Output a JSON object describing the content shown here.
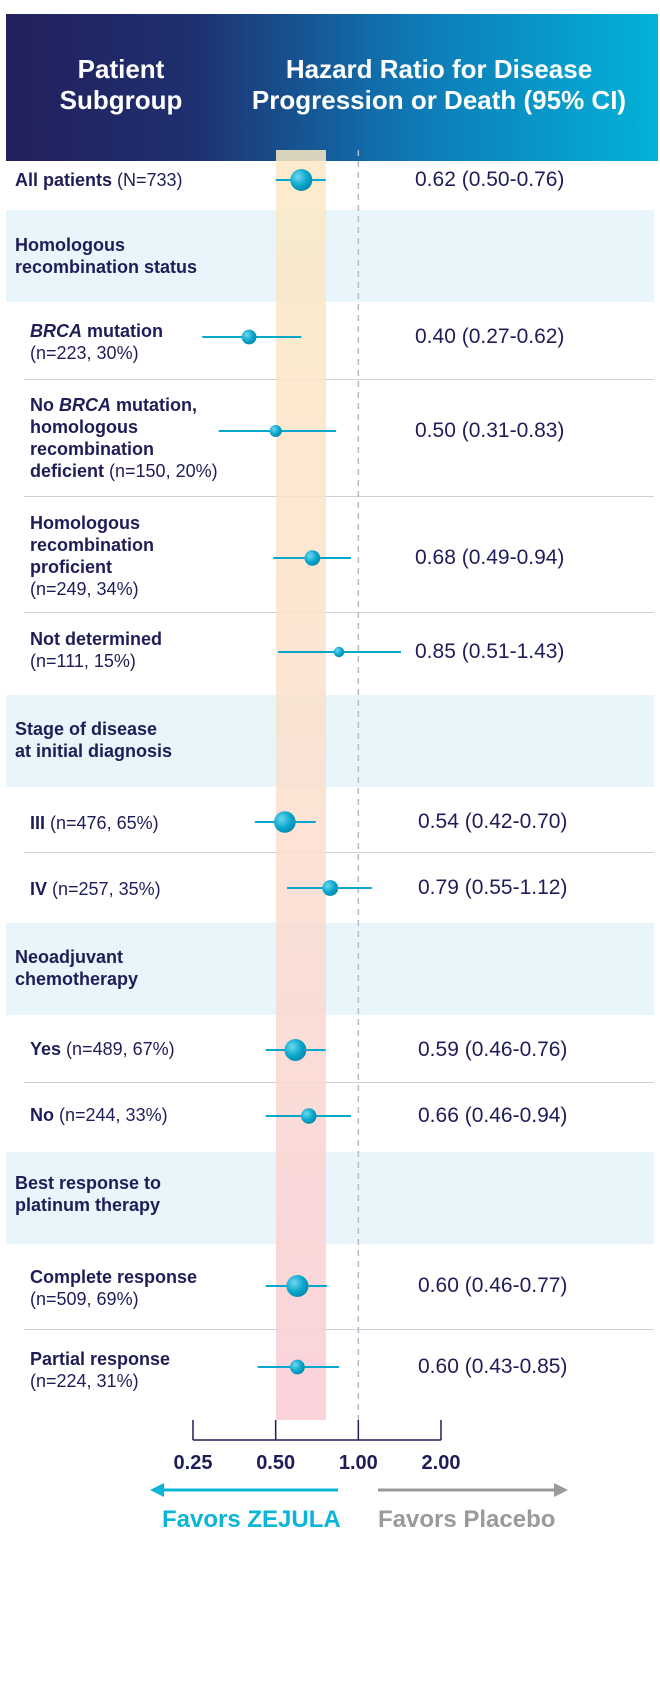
{
  "header": {
    "left": "Patient\nSubgroup",
    "right": "Hazard Ratio for Disease\nProgression or Death (95% CI)"
  },
  "colors": {
    "header_dark": "#22205c",
    "header_light": "#03b2d8",
    "marker": "#0aa7cc",
    "text": "#1f1d57",
    "favors_zejula": "#0bb5d8",
    "favors_placebo": "#9a9a9a",
    "band": "#e8f5fb"
  },
  "chart_data": {
    "type": "forest",
    "x_scale": "log2",
    "xlim": [
      0.25,
      2.0
    ],
    "x_ticks": [
      "0.25",
      "0.50",
      "1.00",
      "2.00"
    ],
    "reference_line": 1.0,
    "overall_ci_band": [
      0.5,
      0.76
    ],
    "favors_left": "Favors ZEJULA",
    "favors_right": "Favors Placebo",
    "rows": [
      {
        "kind": "item",
        "name": "All patients",
        "detail": " (N=733)",
        "hr": 0.62,
        "lo": 0.5,
        "hi": 0.76,
        "text": "0.62 (0.50-0.76)"
      },
      {
        "kind": "group",
        "name": "Homologous\nrecombination status"
      },
      {
        "kind": "item",
        "name": "BRCA",
        "name_rest": " mutation",
        "detail": "(n=223, 30%)",
        "hr": 0.4,
        "lo": 0.27,
        "hi": 0.62,
        "text": "0.40 (0.27-0.62)"
      },
      {
        "kind": "item",
        "name": "No BRCA mutation,\nhomologous\nrecombination\ndeficient",
        "detail": " (n=150, 20%)",
        "hr": 0.5,
        "lo": 0.31,
        "hi": 0.83,
        "text": "0.50 (0.31-0.83)"
      },
      {
        "kind": "item",
        "name": "Homologous\nrecombination\nproficient",
        "detail": "(n=249, 34%)",
        "hr": 0.68,
        "lo": 0.49,
        "hi": 0.94,
        "text": "0.68 (0.49-0.94)"
      },
      {
        "kind": "item",
        "name": "Not determined",
        "detail": "(n=111, 15%)",
        "hr": 0.85,
        "lo": 0.51,
        "hi": 1.43,
        "text": "0.85 (0.51-1.43)"
      },
      {
        "kind": "group",
        "name": "Stage of disease\nat initial diagnosis"
      },
      {
        "kind": "item",
        "name": "III",
        "detail": " (n=476, 65%)",
        "hr": 0.54,
        "lo": 0.42,
        "hi": 0.7,
        "text": "0.54 (0.42-0.70)"
      },
      {
        "kind": "item",
        "name": "IV",
        "detail": "  (n=257, 35%)",
        "hr": 0.79,
        "lo": 0.55,
        "hi": 1.12,
        "text": "0.79 (0.55-1.12)"
      },
      {
        "kind": "group",
        "name": "Neoadjuvant\nchemotherapy"
      },
      {
        "kind": "item",
        "name": "Yes",
        "detail": " (n=489, 67%)",
        "hr": 0.59,
        "lo": 0.46,
        "hi": 0.76,
        "text": "0.59 (0.46-0.76)"
      },
      {
        "kind": "item",
        "name": "No",
        "detail": " (n=244, 33%)",
        "hr": 0.66,
        "lo": 0.46,
        "hi": 0.94,
        "text": "0.66 (0.46-0.94)"
      },
      {
        "kind": "group",
        "name": "Best response to\nplatinum therapy"
      },
      {
        "kind": "item",
        "name": "Complete response",
        "detail": "(n=509, 69%)",
        "hr": 0.6,
        "lo": 0.46,
        "hi": 0.77,
        "text": "0.60 (0.46-0.77)"
      },
      {
        "kind": "item",
        "name": "Partial response",
        "detail": "(n=224, 31%)",
        "hr": 0.6,
        "lo": 0.43,
        "hi": 0.85,
        "text": "0.60 (0.43-0.85)"
      }
    ]
  }
}
